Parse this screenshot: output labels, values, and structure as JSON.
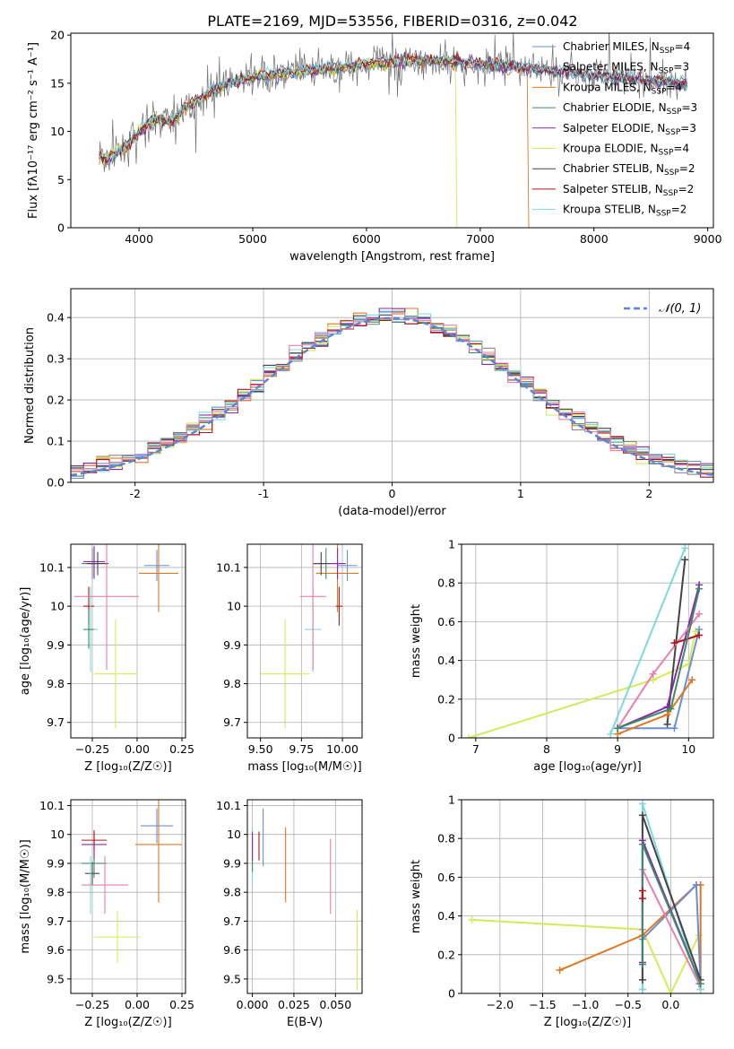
{
  "figure": {
    "title": "PLATE=2169, MJD=53556, FIBERID=0316, z=0.042"
  },
  "series_colors": [
    {
      "name": "Chabrier MILES",
      "color": "#6b8fd6",
      "nssp": 4
    },
    {
      "name": "Salpeter MILES",
      "color": "#8a8a8a",
      "nssp": 3
    },
    {
      "name": "Kroupa MILES",
      "color": "#e07820",
      "nssp": 4
    },
    {
      "name": "Chabrier ELODIE",
      "color": "#3f8a6c",
      "nssp": 3
    },
    {
      "name": "Salpeter ELODIE",
      "color": "#8a2aa8",
      "nssp": 3
    },
    {
      "name": "Kroupa ELODIE",
      "color": "#d6ea56",
      "nssp": 4
    },
    {
      "name": "Chabrier STELIB",
      "color": "#444444",
      "nssp": 2
    },
    {
      "name": "Salpeter STELIB",
      "color": "#b01818",
      "nssp": 2
    },
    {
      "name": "Kroupa STELIB",
      "color": "#7fd8e0",
      "nssp": 2
    }
  ],
  "chart_data": [
    {
      "id": "spectrum",
      "type": "line",
      "xlabel": "wavelength [Angstrom, rest frame]",
      "ylabel": "Flux [fλ10⁻¹⁷ erg cm⁻² s⁻¹ A⁻¹]",
      "xlim": [
        3400,
        9050
      ],
      "ylim": [
        0,
        20.2
      ],
      "xticks": [
        4000,
        5000,
        6000,
        7000,
        8000,
        9000
      ],
      "yticks": [
        0,
        5,
        10,
        15,
        20
      ],
      "grid": false,
      "legend": "top-right",
      "legend_entries": [
        "Chabrier MILES, N_SSP=4",
        "Salpeter MILES, N_SSP=3",
        "Kroupa MILES, N_SSP=4",
        "Chabrier ELODIE, N_SSP=3",
        "Salpeter ELODIE, N_SSP=3",
        "Kroupa ELODIE, N_SSP=4",
        "Chabrier STELIB, N_SSP=2",
        "Salpeter STELIB, N_SSP=2",
        "Kroupa STELIB, N_SSP=2"
      ],
      "continuum": {
        "x": [
          3650,
          3700,
          3800,
          3900,
          4000,
          4100,
          4200,
          4300,
          4400,
          4500,
          4600,
          4700,
          4800,
          4900,
          5000,
          5200,
          5400,
          5600,
          5800,
          6000,
          6200,
          6400,
          6600,
          6800,
          7000,
          7200,
          7400,
          7600,
          7800,
          8000,
          8200,
          8400,
          8600,
          8800
        ],
        "y": [
          7.5,
          7.0,
          7.8,
          8.5,
          10.0,
          11.0,
          11.2,
          11.0,
          12.5,
          13.0,
          13.8,
          14.5,
          15.0,
          15.3,
          15.6,
          15.9,
          16.2,
          16.5,
          16.7,
          17.0,
          17.2,
          17.3,
          17.4,
          17.2,
          17.0,
          16.8,
          16.6,
          16.3,
          16.1,
          15.8,
          15.6,
          15.4,
          15.2,
          15.0
        ]
      },
      "model_cutoffs": [
        {
          "series": "Kroupa MILES",
          "x_end": 7420
        },
        {
          "series": "Kroupa ELODIE",
          "x_end": 6790
        }
      ]
    },
    {
      "id": "residuals",
      "type": "histogram",
      "xlabel": "(data-model)/error",
      "ylabel": "Normed distribution",
      "xlim": [
        -2.5,
        2.5
      ],
      "ylim": [
        0,
        0.47
      ],
      "xticks": [
        -2,
        -1,
        0,
        1,
        2
      ],
      "yticks": [
        0.0,
        0.1,
        0.2,
        0.3,
        0.4
      ],
      "grid": true,
      "legend": "top-right",
      "legend_entries": [
        "𝒩(0, 1)"
      ],
      "bins": 50,
      "reference": {
        "type": "normal",
        "mean": 0,
        "std": 1
      }
    },
    {
      "id": "age-vs-Z",
      "type": "errorbar",
      "xlabel": "Z [log₁₀(Z/Z☉)]",
      "ylabel": "age  [log₁₀(age/yr)]",
      "xlim": [
        -0.37,
        0.27
      ],
      "ylim": [
        9.66,
        10.16
      ],
      "xticks": [
        -0.25,
        0.0,
        0.25
      ],
      "xticklabels": [
        "−0.25",
        "0.00",
        "0.25"
      ],
      "yticks": [
        9.7,
        9.8,
        9.9,
        10.0,
        10.1
      ],
      "grid": true,
      "points": [
        {
          "series": "Chabrier MILES",
          "x": 0.11,
          "xerr": 0.07,
          "y": 10.105,
          "yerr": 0.04
        },
        {
          "series": "Salpeter MILES",
          "x": -0.25,
          "xerr": 0.04,
          "y": 10.11,
          "yerr": 0.04
        },
        {
          "series": "Kroupa MILES",
          "x": 0.12,
          "xerr": 0.11,
          "y": 10.085,
          "yerr": 0.1
        },
        {
          "series": "Chabrier ELODIE",
          "x": -0.24,
          "xerr": 0.07,
          "y": 10.11,
          "yerr": 0.04
        },
        {
          "series": "Salpeter ELODIE",
          "x": -0.24,
          "xerr": 0.06,
          "y": 10.115,
          "yerr": 0.04
        },
        {
          "series": "Kroupa ELODIE",
          "x": -0.12,
          "xerr": 0.12,
          "y": 9.825,
          "yerr": 0.14
        },
        {
          "series": "Chabrier STELIB",
          "x": -0.22,
          "xerr": 0.06,
          "y": 10.11,
          "yerr": 0.03
        },
        {
          "series": "Salpeter STELIB",
          "x": -0.27,
          "xerr": 0.03,
          "y": 10.0,
          "yerr": 0.05
        },
        {
          "series": "Kroupa STELIB",
          "x": -0.26,
          "xerr": 0.04,
          "y": 9.94,
          "yerr": 0.11
        },
        {
          "series": "Chabrier ELODIE",
          "x": -0.27,
          "xerr": 0.03,
          "y": 9.94,
          "yerr": 0.05
        },
        {
          "series": "pink",
          "x": -0.17,
          "xerr": 0.18,
          "y": 10.025,
          "yerr": 0.19
        }
      ]
    },
    {
      "id": "age-vs-mass",
      "type": "errorbar",
      "xlabel": "mass [log₁₀(M/M☉)]",
      "ylabel": "",
      "xlim": [
        9.42,
        10.12
      ],
      "ylim": [
        9.66,
        10.16
      ],
      "xticks": [
        9.5,
        9.75,
        10.0
      ],
      "xticklabels": [
        "9.50",
        "9.75",
        "10.00"
      ],
      "yticks": [
        9.7,
        9.8,
        9.9,
        10.0,
        10.1
      ],
      "grid": true,
      "points": [
        {
          "series": "Chabrier MILES",
          "x": 10.03,
          "xerr": 0.06,
          "y": 10.105,
          "yerr": 0.04
        },
        {
          "series": "Kroupa MILES",
          "x": 9.97,
          "xerr": 0.13,
          "y": 10.085,
          "yerr": 0.1
        },
        {
          "series": "Chabrier ELODIE",
          "x": 9.9,
          "xerr": 0.08,
          "y": 10.11,
          "yerr": 0.04
        },
        {
          "series": "Salpeter ELODIE",
          "x": 9.97,
          "xerr": 0.05,
          "y": 10.11,
          "yerr": 0.04
        },
        {
          "series": "Kroupa ELODIE",
          "x": 9.65,
          "xerr": 0.15,
          "y": 9.825,
          "yerr": 0.14
        },
        {
          "series": "Chabrier STELIB",
          "x": 9.87,
          "xerr": 0.05,
          "y": 10.11,
          "yerr": 0.03
        },
        {
          "series": "Salpeter STELIB",
          "x": 9.98,
          "xerr": 0.02,
          "y": 10.0,
          "yerr": 0.05
        },
        {
          "series": "Kroupa STELIB",
          "x": 9.82,
          "xerr": 0.05,
          "y": 9.94,
          "yerr": 0.11
        },
        {
          "series": "pink",
          "x": 9.82,
          "xerr": 0.08,
          "y": 10.025,
          "yerr": 0.19
        }
      ]
    },
    {
      "id": "weight-vs-age",
      "type": "line",
      "xlabel": "age  [log₁₀(age/yr)]",
      "ylabel": "mass weight",
      "xlim": [
        6.8,
        10.35
      ],
      "ylim": [
        0,
        1.0
      ],
      "xticks": [
        7,
        8,
        9,
        10
      ],
      "yticks": [
        0.0,
        0.2,
        0.4,
        0.6,
        0.8,
        1.0
      ],
      "grid": true,
      "series": [
        {
          "name": "Kroupa ELODIE",
          "x": [
            6.9,
            9.5,
            10.0,
            10.1
          ],
          "y": [
            0.0,
            0.3,
            0.38,
            0.55
          ]
        },
        {
          "name": "Kroupa STELIB",
          "x": [
            8.9,
            9.95
          ],
          "y": [
            0.02,
            0.98
          ]
        },
        {
          "name": "Chabrier STELIB",
          "x": [
            9.7,
            9.95
          ],
          "y": [
            0.07,
            0.92
          ]
        },
        {
          "name": "Salpeter ELODIE",
          "x": [
            9.0,
            9.7,
            10.15
          ],
          "y": [
            0.05,
            0.16,
            0.79
          ]
        },
        {
          "name": "pink",
          "x": [
            9.0,
            9.5,
            10.15
          ],
          "y": [
            0.05,
            0.33,
            0.64
          ]
        },
        {
          "name": "Chabrier MILES",
          "x": [
            9.0,
            9.8,
            10.15
          ],
          "y": [
            0.05,
            0.05,
            0.56
          ]
        },
        {
          "name": "Kroupa MILES",
          "x": [
            9.0,
            9.7,
            10.05
          ],
          "y": [
            0.02,
            0.12,
            0.3
          ]
        },
        {
          "name": "Salpeter STELIB",
          "x": [
            9.8,
            10.15
          ],
          "y": [
            0.49,
            0.53
          ]
        },
        {
          "name": "Chabrier ELODIE",
          "x": [
            9.0,
            9.75,
            10.15
          ],
          "y": [
            0.05,
            0.15,
            0.77
          ]
        }
      ]
    },
    {
      "id": "mass-vs-Z",
      "type": "errorbar",
      "xlabel": "Z [log₁₀(Z/Z☉)]",
      "ylabel": "mass [log₁₀(M/M☉)]",
      "xlim": [
        -0.37,
        0.27
      ],
      "ylim": [
        9.45,
        10.12
      ],
      "xticks": [
        -0.25,
        0.0,
        0.25
      ],
      "xticklabels": [
        "−0.25",
        "0.00",
        "0.25"
      ],
      "yticks": [
        9.5,
        9.6,
        9.7,
        9.8,
        9.9,
        10.0,
        10.1
      ],
      "grid": true,
      "points": [
        {
          "series": "Chabrier MILES",
          "x": 0.11,
          "xerr": 0.09,
          "y": 10.03,
          "yerr": 0.06
        },
        {
          "series": "Kroupa MILES",
          "x": 0.12,
          "xerr": 0.13,
          "y": 9.965,
          "yerr": 0.2
        },
        {
          "series": "Chabrier ELODIE",
          "x": -0.24,
          "xerr": 0.07,
          "y": 9.9,
          "yerr": 0.05
        },
        {
          "series": "Salpeter ELODIE",
          "x": -0.24,
          "xerr": 0.07,
          "y": 9.965,
          "yerr": 0.05
        },
        {
          "series": "Kroupa ELODIE",
          "x": -0.11,
          "xerr": 0.13,
          "y": 9.645,
          "yerr": 0.09
        },
        {
          "series": "Chabrier STELIB",
          "x": -0.25,
          "xerr": 0.04,
          "y": 9.865,
          "yerr": 0.04
        },
        {
          "series": "Salpeter STELIB",
          "x": -0.24,
          "xerr": 0.07,
          "y": 9.98,
          "yerr": 0.03
        },
        {
          "series": "Kroupa STELIB",
          "x": -0.26,
          "xerr": 0.05,
          "y": 9.825,
          "yerr": 0.1
        },
        {
          "series": "pink",
          "x": -0.18,
          "xerr": 0.13,
          "y": 9.825,
          "yerr": 0.1
        }
      ]
    },
    {
      "id": "mass-vs-EBV",
      "type": "errorbar",
      "xlabel": "E(B-V)",
      "ylabel": "",
      "xlim": [
        -0.003,
        0.066
      ],
      "ylim": [
        9.45,
        10.12
      ],
      "xticks": [
        0.0,
        0.025,
        0.05
      ],
      "xticklabels": [
        "0.000",
        "0.025",
        "0.050"
      ],
      "yticks": [
        9.5,
        9.6,
        9.7,
        9.8,
        9.9,
        10.0,
        10.1
      ],
      "grid": true,
      "points": [
        {
          "series": "Chabrier MILES",
          "x": 0.0065,
          "y": 9.99,
          "yerr": 0.1
        },
        {
          "series": "Kroupa MILES",
          "x": 0.02,
          "y": 9.895,
          "yerr": 0.13
        },
        {
          "series": "Salpeter STELIB",
          "x": 0.004,
          "y": 9.96,
          "yerr": 0.05
        },
        {
          "series": "Kroupa STELIB",
          "x": 0.0,
          "y": 9.92,
          "yerr": 0.1
        },
        {
          "series": "pink",
          "x": 0.047,
          "y": 9.855,
          "yerr": 0.13
        },
        {
          "series": "Kroupa ELODIE",
          "x": 0.063,
          "y": 9.6,
          "yerr": 0.14
        },
        {
          "series": "Chabrier ELODIE",
          "x": 0.0,
          "y": 9.93,
          "yerr": 0.06
        },
        {
          "series": "Salpeter ELODIE",
          "x": 0.0,
          "y": 9.96,
          "yerr": 0.05
        }
      ]
    },
    {
      "id": "weight-vs-Z",
      "type": "line",
      "xlabel": "Z [log₁₀(Z/Z☉)]",
      "ylabel": "mass weight",
      "xlim": [
        -2.45,
        0.5
      ],
      "ylim": [
        0,
        1.0
      ],
      "xticks": [
        -2.0,
        -1.5,
        -1.0,
        -0.5,
        0.0
      ],
      "xticklabels": [
        "−2.0",
        "−1.5",
        "−1.0",
        "−0.5",
        "0.0"
      ],
      "yticks": [
        0.0,
        0.2,
        0.4,
        0.6,
        0.8,
        1.0
      ],
      "grid": true,
      "series": [
        {
          "name": "Kroupa ELODIE",
          "x": [
            -2.33,
            -0.33,
            0.0,
            0.33
          ],
          "y": [
            0.38,
            0.33,
            0.0,
            0.3
          ]
        },
        {
          "name": "Kroupa MILES",
          "x": [
            -1.3,
            -0.33,
            0.3,
            0.35,
            0.35
          ],
          "y": [
            0.12,
            0.3,
            0.56,
            0.56,
            0.02
          ]
        },
        {
          "name": "Chabrier MILES",
          "x": [
            -0.33,
            -0.33,
            0.3,
            0.35
          ],
          "y": [
            0.02,
            0.28,
            0.56,
            0.05
          ]
        },
        {
          "name": "Kroupa STELIB",
          "x": [
            -0.33,
            -0.33,
            0.35
          ],
          "y": [
            0.02,
            0.98,
            0.02
          ]
        },
        {
          "name": "Chabrier STELIB",
          "x": [
            -0.33,
            -0.33,
            0.35
          ],
          "y": [
            0.07,
            0.92,
            0.07
          ]
        },
        {
          "name": "Salpeter ELODIE",
          "x": [
            -0.33,
            -0.33,
            0.35
          ],
          "y": [
            0.16,
            0.79,
            0.05
          ]
        },
        {
          "name": "pink",
          "x": [
            -0.33,
            -0.33,
            0.33
          ],
          "y": [
            0.33,
            0.64,
            0.05
          ]
        },
        {
          "name": "Chabrier ELODIE",
          "x": [
            -0.33,
            -0.33,
            0.35
          ],
          "y": [
            0.15,
            0.77,
            0.05
          ]
        },
        {
          "name": "Salpeter STELIB",
          "x": [
            -0.33,
            -0.33
          ],
          "y": [
            0.49,
            0.53
          ]
        }
      ]
    }
  ]
}
